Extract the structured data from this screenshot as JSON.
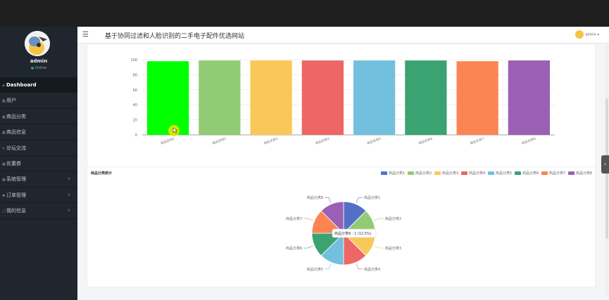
{
  "app": {
    "title": "基于协同过滤和人脸识别的二手电子配件优选网站"
  },
  "sidebar": {
    "username": "admin",
    "status": "Online",
    "items": [
      {
        "label": "Dashboard",
        "icon": "home-icon",
        "glyph": "⌂",
        "active": true,
        "submenu": false
      },
      {
        "label": "用户",
        "icon": "table-icon",
        "glyph": "▦",
        "active": false,
        "submenu": false
      },
      {
        "label": "商品分类",
        "icon": "table-icon",
        "glyph": "▦",
        "active": false,
        "submenu": false
      },
      {
        "label": "商品信息",
        "icon": "table-icon",
        "glyph": "▦",
        "active": false,
        "submenu": false
      },
      {
        "label": "论坛交流",
        "icon": "wrench-icon",
        "glyph": "✎",
        "active": false,
        "submenu": false
      },
      {
        "label": "优惠券",
        "icon": "table-icon",
        "glyph": "▦",
        "active": false,
        "submenu": false
      },
      {
        "label": "系统管理",
        "icon": "table-icon",
        "glyph": "▦",
        "active": false,
        "submenu": true
      },
      {
        "label": "订单管理",
        "icon": "cart-icon",
        "glyph": "♣",
        "active": false,
        "submenu": true
      },
      {
        "label": "我的信息",
        "icon": "file-icon",
        "glyph": "▢",
        "active": false,
        "submenu": true
      }
    ]
  },
  "navbar": {
    "user_label": "admin"
  },
  "colors": [
    "#5470c6",
    "#91cc75",
    "#fac858",
    "#ee6666",
    "#73c0de",
    "#3ba272",
    "#fc8452",
    "#9a60b4"
  ],
  "chart_data": [
    {
      "type": "bar",
      "title": "",
      "categories": [
        "商品名称1",
        "商品名称2",
        "商品名称3",
        "商品名称4",
        "商品名称5",
        "商品名称6",
        "商品名称7",
        "商品名称8"
      ],
      "values": [
        98,
        99,
        99,
        99,
        99,
        99,
        98,
        99
      ],
      "bar_colors": [
        "#00ff00",
        "#91cc75",
        "#fac858",
        "#ee6666",
        "#73c0de",
        "#3ba272",
        "#fc8452",
        "#9a60b4"
      ],
      "ylim": [
        0,
        100
      ],
      "yticks": [
        0,
        20,
        40,
        60,
        80,
        100
      ],
      "grid": true
    },
    {
      "type": "pie",
      "title": "商品分类统计",
      "legend_position": "top-right",
      "labels": [
        "商品分类1",
        "商品分类2",
        "商品分类3",
        "商品分类4",
        "商品分类5",
        "商品分类6",
        "商品分类7",
        "商品分类8"
      ],
      "values": [
        1,
        1,
        1,
        1,
        1,
        1,
        1,
        1
      ],
      "tooltip": "商品分类8 : 1 (12.5%)"
    }
  ]
}
